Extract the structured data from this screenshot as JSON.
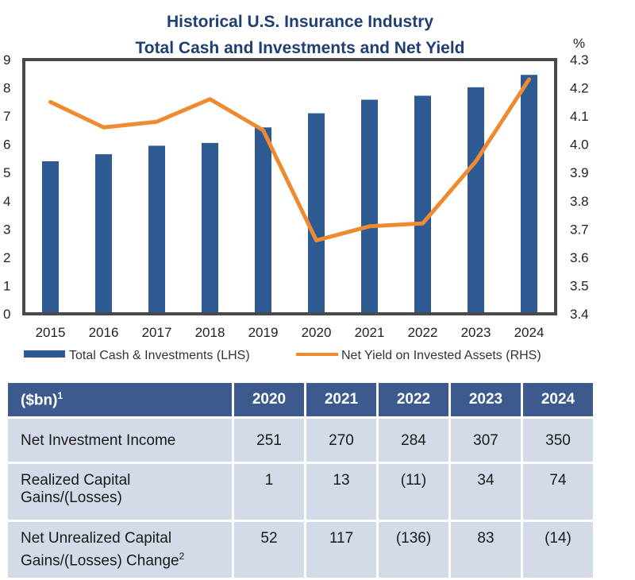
{
  "chart_data": {
    "type": "bar+line",
    "title_lines": [
      "Historical U.S. Insurance Industry",
      "Total Cash and Investments and Net Yield"
    ],
    "categories": [
      "2015",
      "2016",
      "2017",
      "2018",
      "2019",
      "2020",
      "2021",
      "2022",
      "2023",
      "2024"
    ],
    "series": [
      {
        "name": "Total Cash & Investments (LHS)",
        "type": "bar",
        "axis": "left",
        "color": "#2e5a94",
        "values": [
          5.4,
          5.65,
          5.95,
          6.05,
          6.6,
          7.1,
          7.58,
          7.72,
          8.02,
          8.46
        ]
      },
      {
        "name": "Net Yield on Invested Assets (RHS)",
        "type": "line",
        "axis": "right",
        "color": "#ef8a31",
        "values": [
          4.15,
          4.06,
          4.08,
          4.16,
          4.05,
          3.66,
          3.71,
          3.72,
          3.94,
          4.23
        ]
      }
    ],
    "y_left": {
      "min": 0,
      "max": 9,
      "ticks": [
        "0",
        "1",
        "2",
        "3",
        "4",
        "5",
        "6",
        "7",
        "8",
        "9"
      ]
    },
    "y_right": {
      "min": 3.4,
      "max": 4.3,
      "unit": "%",
      "ticks": [
        "3.4",
        "3.5",
        "3.6",
        "3.7",
        "3.8",
        "3.9",
        "4.0",
        "4.1",
        "4.2",
        "4.3"
      ]
    },
    "legend_position": "bottom"
  },
  "table": {
    "headers": [
      "($bn)",
      "2020",
      "2021",
      "2022",
      "2023",
      "2024"
    ],
    "header_superscript": "1",
    "rows": [
      {
        "label": "Net Investment Income",
        "label_sup": "",
        "values": [
          "251",
          "270",
          "284",
          "307",
          "350"
        ]
      },
      {
        "label": "Realized Capital Gains/(Losses)",
        "label_sup": "",
        "values": [
          "1",
          "13",
          "(11)",
          "34",
          "74"
        ]
      },
      {
        "label": "Net Unrealized Capital Gains/(Losses) Change",
        "label_sup": "2",
        "values": [
          "52",
          "117",
          "(136)",
          "83",
          "(14)"
        ]
      }
    ]
  }
}
